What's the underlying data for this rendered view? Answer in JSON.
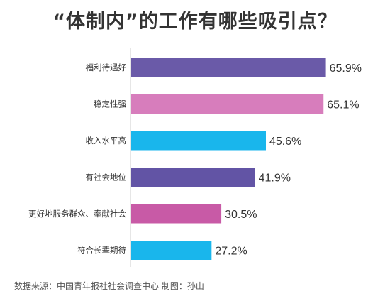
{
  "title": "“体制内”的工作有哪些吸引点？",
  "source": "数据来源：中国青年报社社会调查中心 制图：孙山",
  "chart_data": {
    "type": "bar",
    "orientation": "horizontal",
    "categories": [
      "福利待遇好",
      "稳定性强",
      "收入水平高",
      "有社会地位",
      "更好地服务群众、奉献社会",
      "符合长辈期待"
    ],
    "values": [
      65.9,
      65.1,
      45.6,
      41.9,
      30.5,
      27.2
    ],
    "value_labels": [
      "65.9%",
      "65.1%",
      "45.6%",
      "41.9%",
      "30.5%",
      "27.2%"
    ],
    "colors": [
      "#6a5aa8",
      "#d77dbc",
      "#19b6ec",
      "#6254a5",
      "#c85aa6",
      "#19b6ec"
    ],
    "title": "“体制内”的工作有哪些吸引点？",
    "xlabel": "",
    "ylabel": "",
    "xlim": [
      0,
      66
    ],
    "grid": false,
    "legend": "none"
  }
}
